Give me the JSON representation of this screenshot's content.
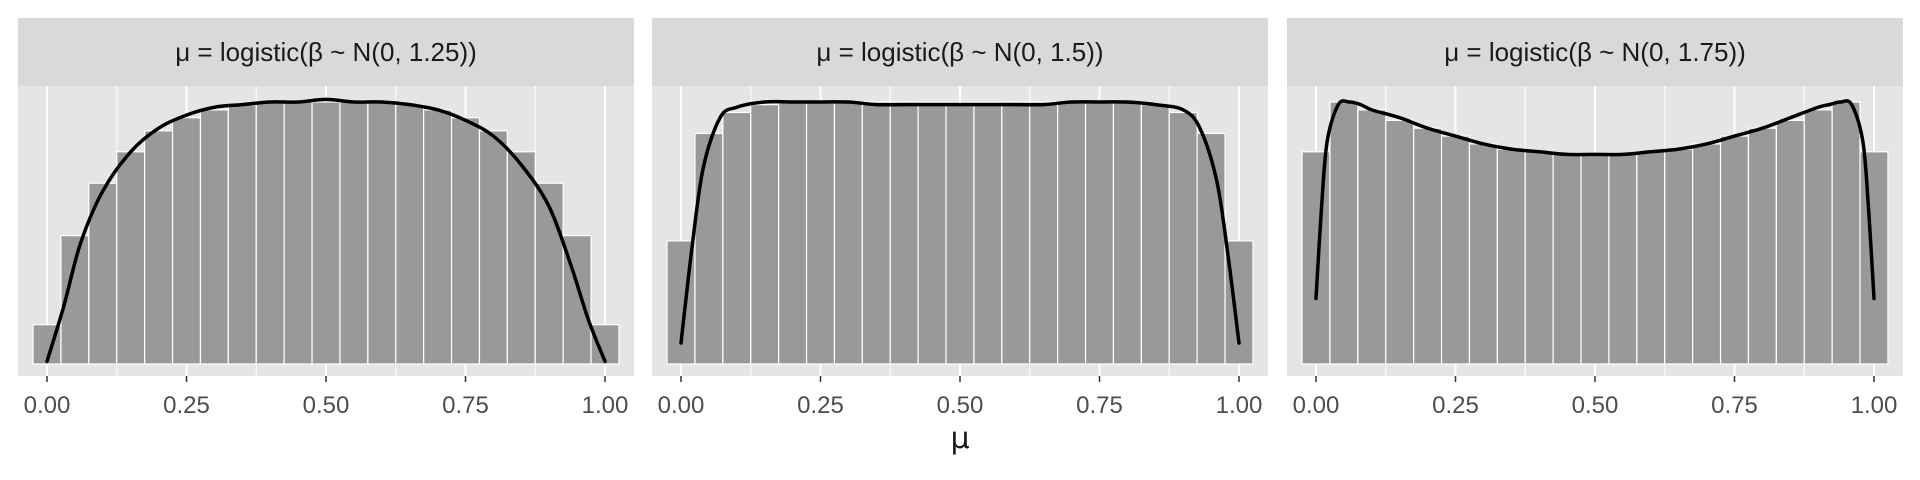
{
  "chart_data": [
    {
      "type": "bar",
      "title": "μ = logistic(β ~ N(0, 1.25))",
      "xlabel": "μ",
      "ylabel": "",
      "xlim": [
        0,
        1
      ],
      "xticks": [
        "0.00",
        "0.25",
        "0.50",
        "0.75",
        "1.00"
      ],
      "bin_width": 0.05,
      "bin_centers": [
        0.0,
        0.05,
        0.1,
        0.15,
        0.2,
        0.25,
        0.3,
        0.35,
        0.4,
        0.45,
        0.5,
        0.55,
        0.6,
        0.65,
        0.7,
        0.75,
        0.8,
        0.85,
        0.9,
        0.95,
        1.0
      ],
      "values": [
        0.15,
        0.49,
        0.69,
        0.81,
        0.89,
        0.94,
        0.97,
        0.99,
        1.0,
        1.0,
        1.0,
        1.0,
        1.0,
        0.99,
        0.97,
        0.94,
        0.89,
        0.81,
        0.69,
        0.49,
        0.15
      ],
      "density_curve": {
        "x": [
          0.0,
          0.03,
          0.06,
          0.1,
          0.15,
          0.2,
          0.25,
          0.3,
          0.35,
          0.4,
          0.45,
          0.5,
          0.55,
          0.6,
          0.65,
          0.7,
          0.75,
          0.8,
          0.85,
          0.9,
          0.94,
          0.97,
          1.0
        ],
        "y": [
          0.01,
          0.22,
          0.46,
          0.66,
          0.81,
          0.9,
          0.95,
          0.98,
          0.99,
          1.0,
          1.0,
          1.01,
          1.0,
          1.0,
          0.99,
          0.97,
          0.93,
          0.87,
          0.76,
          0.6,
          0.37,
          0.17,
          0.01
        ]
      },
      "ylim": [
        0,
        1.05
      ],
      "grid": true,
      "bar_color": "#999999",
      "panel_color": "#e5e5e5",
      "strip_color": "#d9d9d9",
      "curve_color": "#000000"
    },
    {
      "type": "bar",
      "title": "μ = logistic(β ~ N(0, 1.5))",
      "xlabel": "μ",
      "ylabel": "",
      "xlim": [
        0,
        1
      ],
      "xticks": [
        "0.00",
        "0.25",
        "0.50",
        "0.75",
        "1.00"
      ],
      "bin_width": 0.05,
      "bin_centers": [
        0.0,
        0.05,
        0.1,
        0.15,
        0.2,
        0.25,
        0.3,
        0.35,
        0.4,
        0.45,
        0.5,
        0.55,
        0.6,
        0.65,
        0.7,
        0.75,
        0.8,
        0.85,
        0.9,
        0.95,
        1.0
      ],
      "values": [
        0.47,
        0.88,
        0.96,
        0.99,
        1.0,
        1.0,
        1.0,
        1.0,
        1.0,
        0.99,
        0.99,
        0.99,
        1.0,
        1.0,
        1.0,
        1.0,
        1.0,
        0.99,
        0.96,
        0.88,
        0.47
      ],
      "density_curve": {
        "x": [
          0.0,
          0.02,
          0.04,
          0.07,
          0.1,
          0.15,
          0.2,
          0.25,
          0.3,
          0.35,
          0.4,
          0.45,
          0.5,
          0.55,
          0.6,
          0.65,
          0.7,
          0.75,
          0.8,
          0.85,
          0.9,
          0.93,
          0.96,
          0.98,
          1.0
        ],
        "y": [
          0.08,
          0.45,
          0.75,
          0.94,
          0.98,
          1.0,
          1.0,
          1.0,
          1.0,
          0.99,
          0.99,
          0.99,
          0.99,
          0.99,
          0.99,
          0.99,
          1.0,
          1.0,
          1.0,
          0.99,
          0.97,
          0.9,
          0.7,
          0.42,
          0.08
        ]
      },
      "ylim": [
        0,
        1.05
      ],
      "grid": true,
      "bar_color": "#999999",
      "panel_color": "#e5e5e5",
      "strip_color": "#d9d9d9",
      "curve_color": "#000000"
    },
    {
      "type": "bar",
      "title": "μ = logistic(β ~ N(0, 1.75))",
      "xlabel": "μ",
      "ylabel": "",
      "xlim": [
        0,
        1
      ],
      "xticks": [
        "0.00",
        "0.25",
        "0.50",
        "0.75",
        "1.00"
      ],
      "bin_width": 0.05,
      "bin_centers": [
        0.0,
        0.05,
        0.1,
        0.15,
        0.2,
        0.25,
        0.3,
        0.35,
        0.4,
        0.45,
        0.5,
        0.55,
        0.6,
        0.65,
        0.7,
        0.75,
        0.8,
        0.85,
        0.9,
        0.95,
        1.0
      ],
      "values": [
        0.81,
        1.0,
        0.97,
        0.93,
        0.9,
        0.87,
        0.84,
        0.82,
        0.81,
        0.8,
        0.8,
        0.8,
        0.81,
        0.82,
        0.84,
        0.87,
        0.9,
        0.93,
        0.97,
        1.0,
        0.81
      ],
      "density_curve": {
        "x": [
          0.0,
          0.01,
          0.02,
          0.04,
          0.06,
          0.08,
          0.1,
          0.15,
          0.2,
          0.25,
          0.3,
          0.35,
          0.4,
          0.45,
          0.5,
          0.55,
          0.6,
          0.65,
          0.7,
          0.75,
          0.8,
          0.85,
          0.9,
          0.92,
          0.94,
          0.96,
          0.98,
          0.99,
          1.0
        ],
        "y": [
          0.25,
          0.6,
          0.85,
          0.99,
          1.0,
          0.99,
          0.97,
          0.94,
          0.9,
          0.87,
          0.84,
          0.82,
          0.81,
          0.8,
          0.8,
          0.8,
          0.81,
          0.82,
          0.84,
          0.87,
          0.9,
          0.94,
          0.98,
          0.99,
          1.0,
          0.99,
          0.85,
          0.6,
          0.25
        ]
      },
      "ylim": [
        0,
        1.05
      ],
      "grid": true,
      "bar_color": "#999999",
      "panel_color": "#e5e5e5",
      "strip_color": "#d9d9d9",
      "curve_color": "#000000"
    }
  ],
  "axis_title": "μ"
}
